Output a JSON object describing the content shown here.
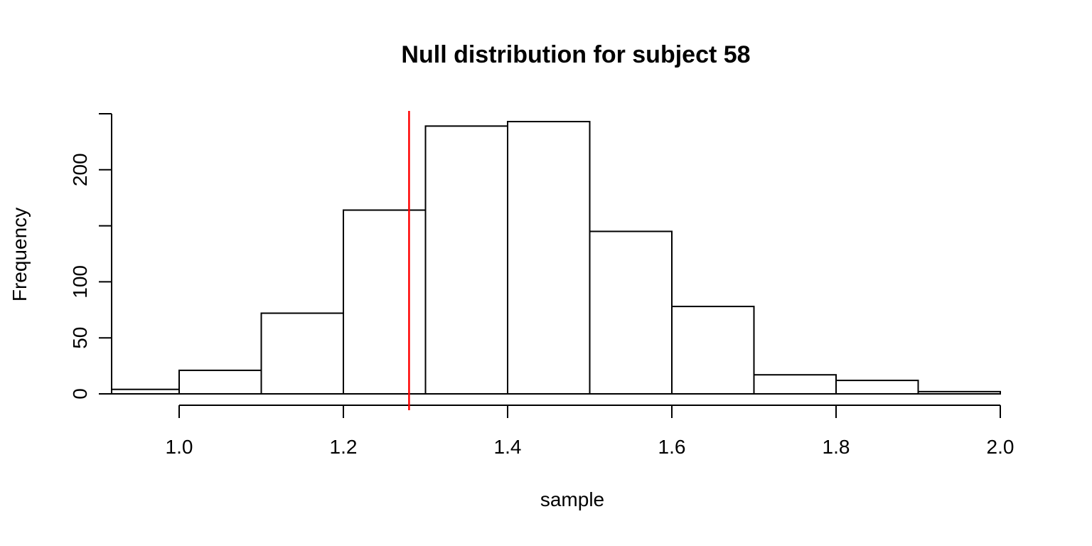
{
  "chart_data": {
    "type": "bar",
    "subtype": "histogram",
    "title": "Null distribution for subject 58",
    "xlabel": "sample",
    "ylabel": "Frequency",
    "bin_edges": [
      0.9,
      1.0,
      1.1,
      1.2,
      1.3,
      1.4,
      1.5,
      1.6,
      1.7,
      1.8,
      1.9,
      2.0
    ],
    "counts": [
      4,
      21,
      72,
      164,
      239,
      243,
      145,
      78,
      17,
      12,
      2
    ],
    "xlim": [
      1.0,
      2.0
    ],
    "ylim": [
      0,
      250
    ],
    "x_ticks": [
      {
        "value": 1.0,
        "label": "1.0"
      },
      {
        "value": 1.2,
        "label": "1.2"
      },
      {
        "value": 1.4,
        "label": "1.4"
      },
      {
        "value": 1.6,
        "label": "1.6"
      },
      {
        "value": 1.8,
        "label": "1.8"
      },
      {
        "value": 2.0,
        "label": "2.0"
      }
    ],
    "y_ticks": [
      {
        "value": 0,
        "label": "0"
      },
      {
        "value": 50,
        "label": "50"
      },
      {
        "value": 100,
        "label": "100"
      },
      {
        "value": 150,
        "label": ""
      },
      {
        "value": 200,
        "label": "200"
      },
      {
        "value": 250,
        "label": ""
      }
    ],
    "grid": false,
    "legend": "none",
    "vline": {
      "value": 1.28,
      "color": "#FF0000"
    },
    "colors": {
      "bar_fill": "#FFFFFF",
      "bar_stroke": "#000000",
      "axis": "#000000",
      "background": "#FFFFFF"
    }
  }
}
